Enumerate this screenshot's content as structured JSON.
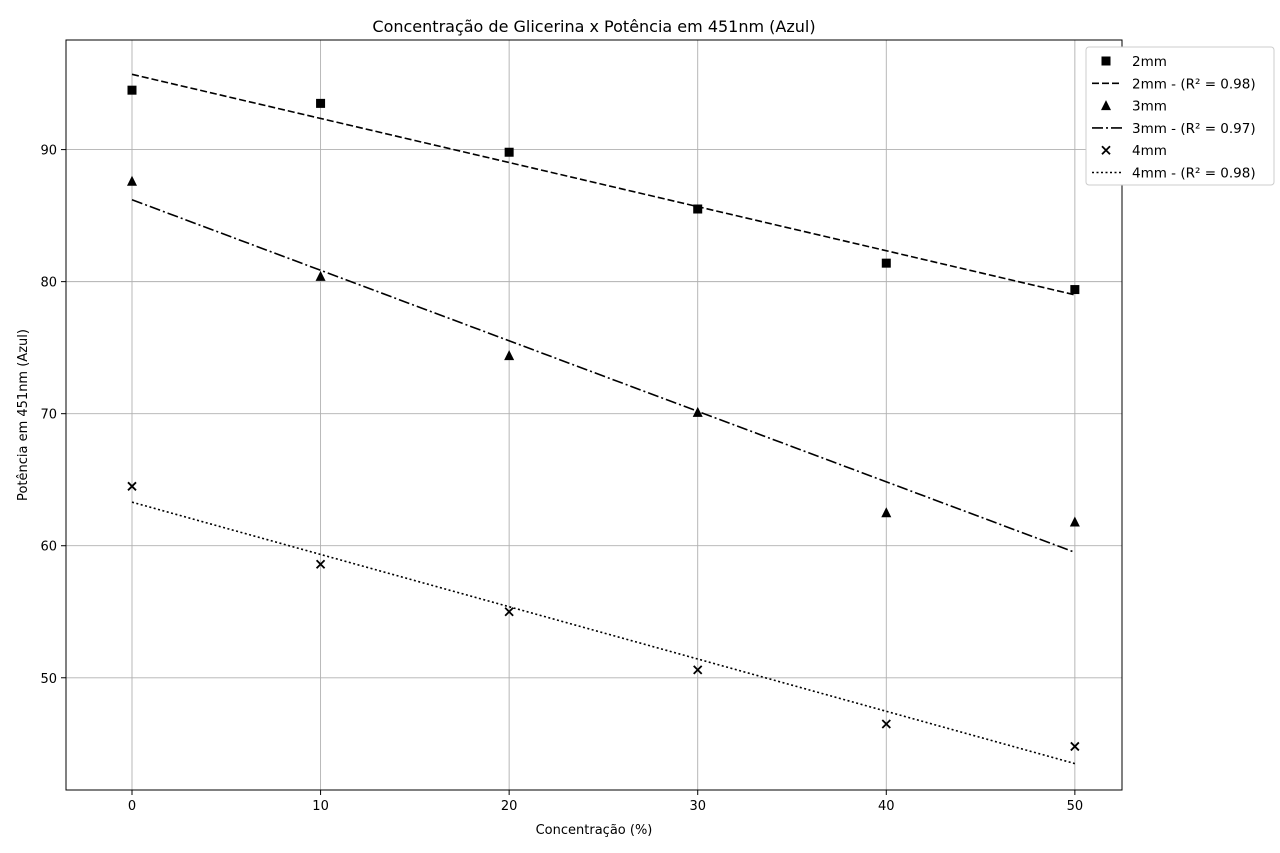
{
  "chart_data": {
    "type": "scatter",
    "title": "Concentração de Glicerina x Potência em 451nm (Azul)",
    "xlabel": "Concentração (%)",
    "ylabel": "Potência em 451nm (Azul)",
    "xlim": [
      -3.5,
      52.5
    ],
    "ylim": [
      41.5,
      98.3
    ],
    "xticks": [
      0,
      10,
      20,
      30,
      40,
      50
    ],
    "yticks": [
      50,
      60,
      70,
      80,
      90
    ],
    "grid": true,
    "legend_position": "top-right, outside plot",
    "colors": {
      "marker": "#000000",
      "line": "#000000",
      "grid": "#b0b0b0"
    },
    "series": [
      {
        "name": "2mm",
        "marker": "square",
        "x": [
          0,
          10,
          20,
          30,
          40,
          50
        ],
        "y": [
          94.5,
          93.5,
          89.8,
          85.5,
          81.4,
          79.4
        ],
        "fit": {
          "name": "2mm - (R² = 0.98)",
          "style": "dashed",
          "x": [
            0,
            50
          ],
          "y": [
            95.7,
            79.0
          ]
        }
      },
      {
        "name": "3mm",
        "marker": "triangle",
        "x": [
          0,
          10,
          20,
          30,
          40,
          50
        ],
        "y": [
          87.6,
          80.4,
          74.4,
          70.1,
          62.5,
          61.8
        ],
        "fit": {
          "name": "3mm - (R² = 0.97)",
          "style": "dashdot",
          "x": [
            0,
            50
          ],
          "y": [
            86.2,
            59.5
          ]
        }
      },
      {
        "name": "4mm",
        "marker": "x",
        "x": [
          0,
          10,
          20,
          30,
          40,
          50
        ],
        "y": [
          64.5,
          58.6,
          55.0,
          50.6,
          46.5,
          44.8
        ],
        "fit": {
          "name": "4mm - (R² = 0.98)",
          "style": "dotted",
          "x": [
            0,
            50
          ],
          "y": [
            63.3,
            43.5
          ]
        }
      }
    ]
  }
}
